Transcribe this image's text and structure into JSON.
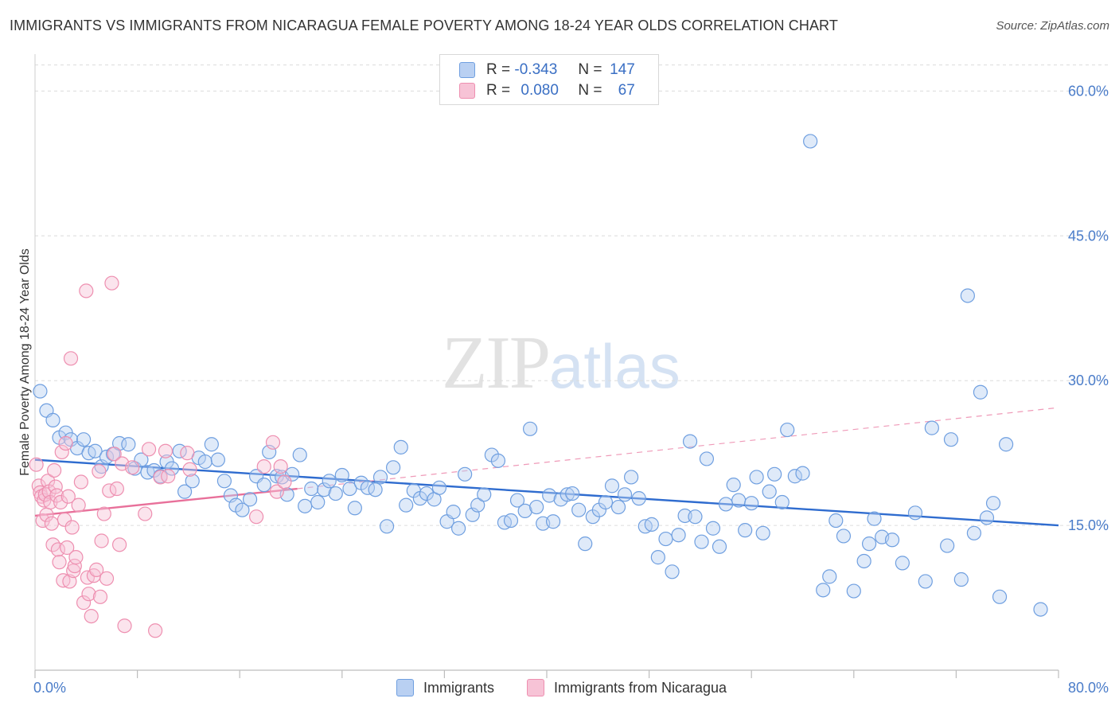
{
  "title": "IMMIGRANTS VS IMMIGRANTS FROM NICARAGUA FEMALE POVERTY AMONG 18-24 YEAR OLDS CORRELATION CHART",
  "source": "Source: ZipAtlas.com",
  "watermark": {
    "zip": "ZIP",
    "atlas": "atlas"
  },
  "legend": {
    "r_label": "R =",
    "n_label": "N =",
    "rows": [
      {
        "r": "-0.343",
        "n": "147"
      },
      {
        "r": "0.080",
        "n": "67"
      }
    ]
  },
  "chart_data": {
    "type": "scatter",
    "title": "IMMIGRANTS VS IMMIGRANTS FROM NICARAGUA FEMALE POVERTY AMONG 18-24 YEAR OLDS CORRELATION CHART",
    "xlabel": "",
    "ylabel": "Female Poverty Among 18-24 Year Olds",
    "xlim": [
      0,
      80
    ],
    "ylim": [
      0,
      63
    ],
    "x_ticks": [
      "0.0%",
      "80.0%"
    ],
    "y_ticks": [
      {
        "value": 15,
        "label": "15.0%"
      },
      {
        "value": 30,
        "label": "30.0%"
      },
      {
        "value": 45,
        "label": "45.0%"
      },
      {
        "value": 60,
        "label": "60.0%"
      }
    ],
    "grid": true,
    "legend_position": "top-center",
    "series": [
      {
        "name": "Immigrants",
        "color": "#6f9fe0",
        "fill": "#b9d0f2",
        "r": -0.343,
        "n": 147,
        "trend": {
          "x": [
            0,
            80
          ],
          "y": [
            21.8,
            15.0
          ],
          "style": "solid",
          "color": "#2f6ccf"
        },
        "points": [
          [
            0.4,
            28.9
          ],
          [
            0.9,
            26.9
          ],
          [
            1.4,
            25.9
          ],
          [
            1.9,
            24.1
          ],
          [
            2.4,
            24.6
          ],
          [
            2.8,
            23.9
          ],
          [
            3.3,
            23.0
          ],
          [
            3.8,
            23.9
          ],
          [
            4.2,
            22.5
          ],
          [
            4.7,
            22.7
          ],
          [
            5.2,
            21.1
          ],
          [
            5.6,
            22.1
          ],
          [
            6.1,
            22.4
          ],
          [
            6.6,
            23.5
          ],
          [
            7.3,
            23.4
          ],
          [
            7.8,
            20.9
          ],
          [
            8.3,
            21.8
          ],
          [
            8.8,
            20.5
          ],
          [
            9.3,
            20.7
          ],
          [
            9.8,
            20.1
          ],
          [
            10.3,
            21.6
          ],
          [
            10.7,
            20.9
          ],
          [
            11.3,
            22.7
          ],
          [
            11.7,
            18.5
          ],
          [
            12.3,
            19.6
          ],
          [
            12.8,
            22.0
          ],
          [
            13.3,
            21.6
          ],
          [
            13.8,
            23.4
          ],
          [
            14.3,
            21.8
          ],
          [
            14.8,
            19.6
          ],
          [
            15.3,
            18.1
          ],
          [
            15.7,
            17.1
          ],
          [
            16.2,
            16.6
          ],
          [
            16.8,
            17.7
          ],
          [
            17.3,
            20.1
          ],
          [
            17.9,
            19.2
          ],
          [
            18.3,
            22.6
          ],
          [
            18.9,
            20.1
          ],
          [
            19.3,
            20.0
          ],
          [
            19.7,
            18.2
          ],
          [
            20.1,
            20.3
          ],
          [
            20.7,
            22.3
          ],
          [
            21.1,
            17.0
          ],
          [
            21.6,
            18.8
          ],
          [
            22.1,
            17.4
          ],
          [
            22.6,
            18.7
          ],
          [
            23.0,
            19.6
          ],
          [
            23.5,
            18.3
          ],
          [
            24.0,
            20.2
          ],
          [
            24.6,
            18.8
          ],
          [
            25.0,
            16.8
          ],
          [
            25.5,
            19.4
          ],
          [
            26.0,
            18.9
          ],
          [
            26.6,
            18.7
          ],
          [
            27.0,
            20.0
          ],
          [
            27.5,
            14.9
          ],
          [
            28.0,
            21.0
          ],
          [
            28.6,
            23.1
          ],
          [
            29.0,
            17.1
          ],
          [
            29.6,
            18.6
          ],
          [
            30.1,
            17.8
          ],
          [
            30.6,
            18.3
          ],
          [
            31.2,
            17.7
          ],
          [
            31.6,
            18.9
          ],
          [
            32.2,
            15.4
          ],
          [
            32.7,
            16.4
          ],
          [
            33.1,
            14.7
          ],
          [
            33.6,
            20.3
          ],
          [
            34.2,
            16.1
          ],
          [
            34.6,
            17.1
          ],
          [
            35.1,
            18.2
          ],
          [
            35.7,
            22.3
          ],
          [
            36.2,
            21.7
          ],
          [
            36.7,
            15.3
          ],
          [
            37.2,
            15.5
          ],
          [
            37.7,
            17.6
          ],
          [
            38.3,
            16.5
          ],
          [
            38.7,
            25.0
          ],
          [
            39.2,
            16.9
          ],
          [
            39.7,
            15.2
          ],
          [
            40.2,
            18.1
          ],
          [
            40.5,
            15.4
          ],
          [
            41.1,
            17.7
          ],
          [
            41.6,
            18.2
          ],
          [
            42.0,
            18.3
          ],
          [
            42.5,
            16.6
          ],
          [
            43.0,
            13.1
          ],
          [
            43.6,
            15.9
          ],
          [
            44.1,
            16.6
          ],
          [
            44.6,
            17.4
          ],
          [
            45.1,
            19.1
          ],
          [
            45.6,
            16.9
          ],
          [
            46.1,
            18.2
          ],
          [
            46.6,
            20.0
          ],
          [
            47.2,
            17.8
          ],
          [
            47.7,
            14.9
          ],
          [
            48.2,
            15.1
          ],
          [
            48.7,
            11.7
          ],
          [
            49.3,
            13.6
          ],
          [
            49.8,
            10.2
          ],
          [
            50.3,
            14.0
          ],
          [
            50.8,
            16.0
          ],
          [
            51.2,
            23.7
          ],
          [
            51.6,
            15.9
          ],
          [
            52.1,
            13.3
          ],
          [
            52.5,
            21.9
          ],
          [
            53.0,
            14.7
          ],
          [
            53.5,
            12.8
          ],
          [
            54.0,
            17.2
          ],
          [
            54.6,
            19.2
          ],
          [
            55.0,
            17.6
          ],
          [
            55.5,
            14.5
          ],
          [
            56.0,
            17.3
          ],
          [
            56.4,
            20.0
          ],
          [
            56.9,
            14.2
          ],
          [
            57.4,
            18.5
          ],
          [
            57.8,
            20.3
          ],
          [
            58.4,
            17.4
          ],
          [
            58.8,
            24.9
          ],
          [
            59.4,
            20.1
          ],
          [
            60.0,
            20.4
          ],
          [
            60.6,
            54.8
          ],
          [
            61.6,
            8.3
          ],
          [
            62.1,
            9.7
          ],
          [
            62.6,
            15.5
          ],
          [
            63.2,
            13.9
          ],
          [
            64.0,
            8.2
          ],
          [
            64.8,
            11.3
          ],
          [
            65.2,
            13.1
          ],
          [
            65.6,
            15.7
          ],
          [
            66.2,
            13.8
          ],
          [
            67.0,
            13.5
          ],
          [
            67.8,
            11.1
          ],
          [
            68.8,
            16.3
          ],
          [
            69.6,
            9.2
          ],
          [
            70.1,
            25.1
          ],
          [
            71.3,
            12.9
          ],
          [
            71.6,
            23.9
          ],
          [
            72.4,
            9.4
          ],
          [
            72.9,
            38.8
          ],
          [
            73.4,
            14.2
          ],
          [
            73.9,
            28.8
          ],
          [
            74.4,
            15.8
          ],
          [
            74.9,
            17.3
          ],
          [
            75.4,
            7.6
          ],
          [
            75.9,
            23.4
          ],
          [
            78.6,
            6.3
          ]
        ]
      },
      {
        "name": "Immigrants from Nicaragua",
        "color": "#ee8fb0",
        "fill": "#f7c3d6",
        "r": 0.08,
        "n": 67,
        "trend": {
          "x": [
            0,
            20.5
          ],
          "y": [
            16.0,
            18.8
          ],
          "style": "solid",
          "color": "#e8709a"
        },
        "trend_extension": {
          "x": [
            20.5,
            80
          ],
          "y": [
            18.8,
            27.2
          ],
          "style": "dashed",
          "color": "#ef9ab8"
        },
        "points": [
          [
            0.1,
            21.3
          ],
          [
            0.3,
            19.1
          ],
          [
            0.4,
            18.4
          ],
          [
            0.5,
            18.0
          ],
          [
            0.6,
            15.5
          ],
          [
            0.7,
            17.6
          ],
          [
            0.8,
            18.2
          ],
          [
            0.9,
            16.1
          ],
          [
            1.0,
            19.6
          ],
          [
            1.1,
            18.5
          ],
          [
            1.2,
            17.4
          ],
          [
            1.3,
            15.2
          ],
          [
            1.4,
            13.0
          ],
          [
            1.5,
            20.7
          ],
          [
            1.6,
            19.0
          ],
          [
            1.7,
            18.1
          ],
          [
            1.8,
            12.5
          ],
          [
            1.9,
            11.2
          ],
          [
            2.0,
            17.4
          ],
          [
            2.1,
            22.6
          ],
          [
            2.2,
            9.3
          ],
          [
            2.3,
            15.6
          ],
          [
            2.4,
            23.5
          ],
          [
            2.5,
            12.7
          ],
          [
            2.6,
            18.0
          ],
          [
            2.7,
            9.2
          ],
          [
            2.8,
            32.3
          ],
          [
            2.9,
            14.8
          ],
          [
            3.0,
            10.3
          ],
          [
            3.1,
            10.8
          ],
          [
            3.2,
            11.7
          ],
          [
            3.4,
            17.1
          ],
          [
            3.6,
            19.5
          ],
          [
            3.8,
            7.0
          ],
          [
            4.0,
            39.3
          ],
          [
            4.1,
            9.6
          ],
          [
            4.2,
            7.9
          ],
          [
            4.4,
            5.6
          ],
          [
            4.6,
            9.8
          ],
          [
            4.8,
            10.4
          ],
          [
            5.0,
            20.6
          ],
          [
            5.1,
            7.6
          ],
          [
            5.2,
            13.4
          ],
          [
            5.4,
            16.2
          ],
          [
            5.6,
            9.5
          ],
          [
            5.8,
            18.6
          ],
          [
            6.0,
            40.1
          ],
          [
            6.2,
            22.4
          ],
          [
            6.4,
            18.8
          ],
          [
            6.6,
            13.0
          ],
          [
            6.8,
            21.4
          ],
          [
            7.0,
            4.6
          ],
          [
            7.6,
            21.0
          ],
          [
            8.6,
            16.2
          ],
          [
            8.9,
            22.9
          ],
          [
            9.4,
            4.1
          ],
          [
            9.8,
            20.0
          ],
          [
            10.2,
            22.7
          ],
          [
            10.4,
            20.1
          ],
          [
            11.9,
            22.5
          ],
          [
            12.1,
            20.8
          ],
          [
            17.3,
            15.9
          ],
          [
            17.9,
            21.1
          ],
          [
            18.6,
            23.6
          ],
          [
            18.9,
            18.5
          ],
          [
            19.5,
            19.5
          ],
          [
            19.2,
            21.1
          ]
        ]
      }
    ]
  }
}
